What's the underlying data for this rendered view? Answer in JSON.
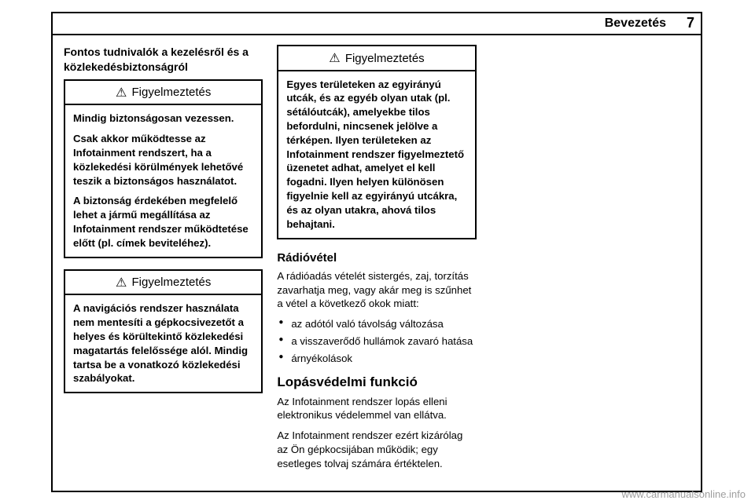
{
  "header": {
    "title": "Bevezetés",
    "page_number": "7"
  },
  "section_heading": "Fontos tudnivalók a kezelésről és a közlekedésbiztonságról",
  "warnings": [
    {
      "label": "Figyelmeztetés",
      "paragraphs": [
        "Mindig biztonságosan vezessen.",
        "Csak akkor működtesse az Infotainment rendszert, ha a közlekedési körülmények lehetővé teszik a biztonságos használatot.",
        "A biztonság érdekében megfelelő lehet a jármű megállítása az Infotainment rendszer működtetése előtt (pl. címek beviteléhez)."
      ]
    },
    {
      "label": "Figyelmeztetés",
      "paragraphs": [
        "A navigációs rendszer használata nem mentesíti a gépkocsivezetőt a helyes és körültekintő közlekedési magatartás felelőssége alól. Mindig tartsa be a vonatkozó közlekedési szabályokat."
      ]
    },
    {
      "label": "Figyelmeztetés",
      "paragraphs": [
        "Egyes területeken az egyirányú utcák, és az egyéb olyan utak (pl. sétálóutcák), amelyekbe tilos befordulni, nincsenek jelölve a térképen. Ilyen területeken az Infotainment rendszer figyelmeztető üzenetet adhat, amelyet el kell fogadni. Ilyen helyen különösen figyelnie kell az egyirányú utcákra, és az olyan utakra, ahová tilos behajtani."
      ]
    }
  ],
  "radio": {
    "heading": "Rádióvétel",
    "intro": "A rádióadás vételét sistergés, zaj, torzítás zavarhatja meg, vagy akár meg is szűnhet a vétel a következő okok miatt:",
    "bullets": [
      "az adótól való távolság változása",
      "a visszaverődő hullámok zavaró hatása",
      "árnyékolások"
    ]
  },
  "theft": {
    "heading": "Lopásvédelmi funkció",
    "p1": "Az Infotainment rendszer lopás elleni elektronikus védelemmel van ellátva.",
    "p2": "Az Infotainment rendszer ezért kizárólag az Ön gépkocsijában működik; egy esetleges tolvaj számára értéktelen."
  },
  "footer": "www.carmanualsonline.info"
}
